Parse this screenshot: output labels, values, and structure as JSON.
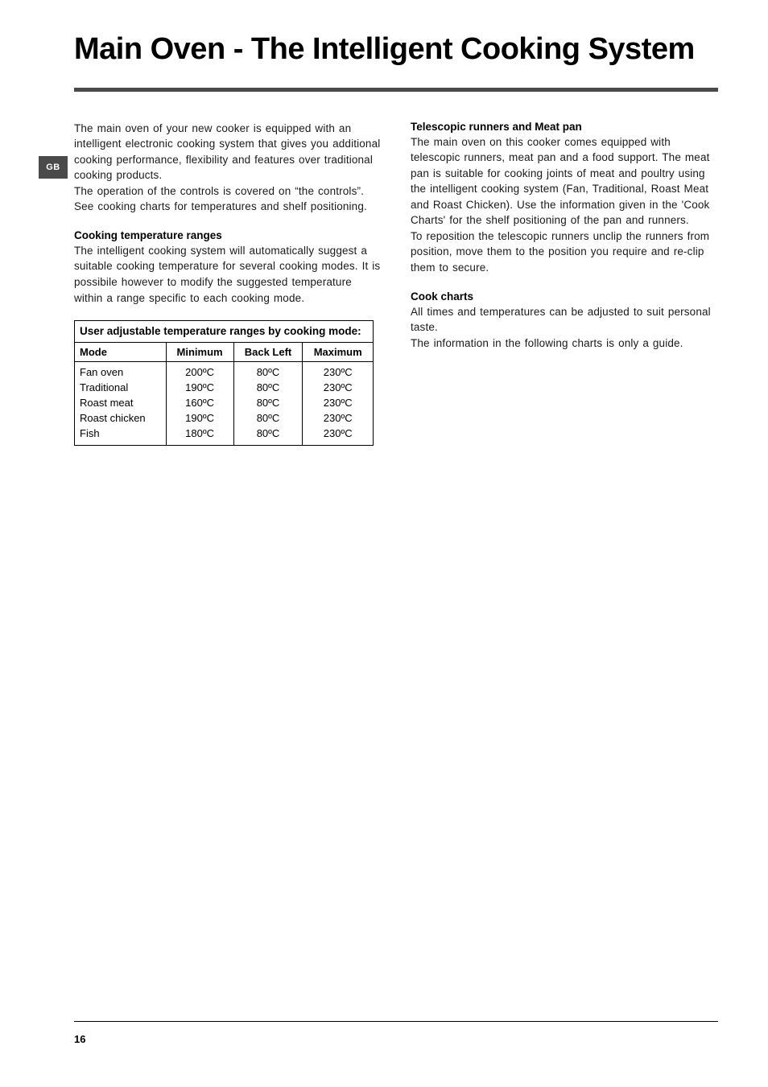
{
  "tab": "GB",
  "title": "Main Oven - The Intelligent Cooking System",
  "left": {
    "intro": "The main oven of your new cooker is equipped with an intelligent electronic cooking system that gives you additional cooking performance, flexibility and features over traditional cooking products.",
    "intro2": "The operation of the controls is covered on “the controls”. See cooking charts for temperatures and shelf positioning.",
    "h_ranges": "Cooking temperature ranges",
    "ranges_para": "The intelligent cooking system will automatically suggest a suitable cooking temperature for several cooking modes. It is possibile however to modify the suggested temperature within a range specific to each cooking mode.",
    "table": {
      "caption": "User adjustable temperature ranges by cooking mode:",
      "headers": {
        "mode": "Mode",
        "min": "Minimum",
        "back": "Back Left",
        "max": "Maximum"
      },
      "rows": [
        {
          "mode": "Fan oven",
          "min": "200ºC",
          "back": "80ºC",
          "max": "230ºC"
        },
        {
          "mode": "Traditional",
          "min": "190ºC",
          "back": "80ºC",
          "max": "230ºC"
        },
        {
          "mode": "Roast meat",
          "min": "160ºC",
          "back": "80ºC",
          "max": "230ºC"
        },
        {
          "mode": "Roast chicken",
          "min": "190ºC",
          "back": "80ºC",
          "max": "230ºC"
        },
        {
          "mode": "Fish",
          "min": "180ºC",
          "back": "80ºC",
          "max": "230ºC"
        }
      ]
    }
  },
  "right": {
    "h_tele": "Telescopic runners and Meat pan",
    "tele_p1": "The main oven on this cooker comes equipped with telescopic runners, meat pan and a food support. The meat pan is suitable for cooking joints of meat and poultry using the intelligent cooking system (Fan, Traditional, Roast Meat and Roast Chicken). Use the information given in the 'Cook Charts' for the shelf positioning of the pan and runners.",
    "tele_p2": "To reposition the telescopic runners unclip the runners from position, move them to the position you require and re-clip them to secure.",
    "h_cook": "Cook charts",
    "cook_p1": "All times and temperatures can be adjusted to suit personal taste.",
    "cook_p2": "The information in the following charts is only a guide."
  },
  "page_number": "16",
  "colors": {
    "rule": "#4a4a4a",
    "tab_bg": "#4a4a4a",
    "tab_fg": "#ffffff",
    "text": "#000000"
  }
}
